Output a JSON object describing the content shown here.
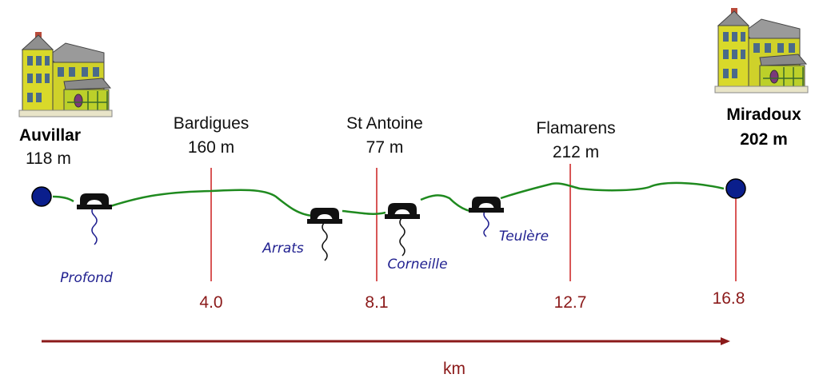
{
  "endpoints": [
    {
      "name": "Auvillar",
      "elevation": "118 m",
      "km": "0"
    },
    {
      "name": "Miradoux",
      "elevation": "202 m",
      "km": "16.8"
    }
  ],
  "waypoints": [
    {
      "name": "Bardigues",
      "elevation": "160 m",
      "km": "4.0"
    },
    {
      "name": "St Antoine",
      "elevation": "77 m",
      "km": "8.1"
    },
    {
      "name": "Flamarens",
      "elevation": "212 m",
      "km": "12.7"
    }
  ],
  "streams": [
    "Profond",
    "Arrats",
    "Corneille",
    "Teulère"
  ],
  "axis_label": "km",
  "colors": {
    "route": "#1f8a1f",
    "marker_line": "#cc1f1f",
    "km_text": "#8b1a1a",
    "arrow": "#8b1a1a",
    "stream": "#1f1f8f",
    "endpoint": "#0a1e8c"
  },
  "icons": [
    "house-icon",
    "bridge-icon"
  ]
}
